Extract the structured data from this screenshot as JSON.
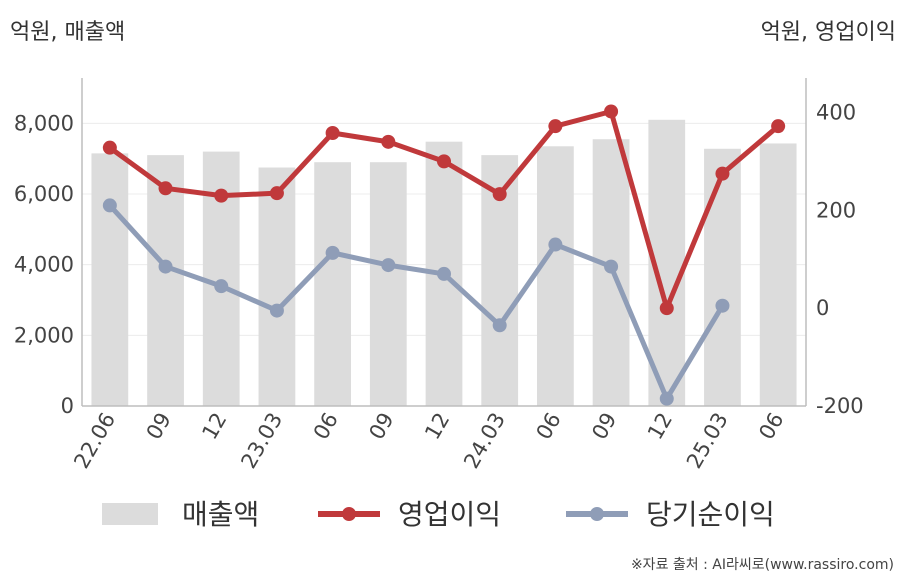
{
  "chart_data": {
    "type": "bar",
    "categories": [
      "22.06",
      "09",
      "12",
      "23.03",
      "06",
      "09",
      "12",
      "24.03",
      "06",
      "09",
      "12",
      "25.03",
      "06"
    ],
    "left_axis_label": "억원, 매출액",
    "right_axis_label": "억원, 영업이익",
    "left_ylim": [
      0,
      9000
    ],
    "left_ticks": [
      0,
      2000,
      4000,
      6000,
      8000
    ],
    "left_tick_labels": [
      "0",
      "2,000",
      "4,000",
      "6,000",
      "8,000"
    ],
    "right_ylim": [
      -200,
      450
    ],
    "right_ticks": [
      -200,
      0,
      200,
      400
    ],
    "right_tick_labels": [
      "-200",
      "0",
      "200",
      "400"
    ],
    "grid": true,
    "legend_position": "bottom",
    "series": [
      {
        "name": "매출액",
        "type": "bar",
        "axis": "left",
        "color": "#dcdcdc",
        "values": [
          7150,
          7100,
          7200,
          6750,
          6900,
          6900,
          7480,
          7100,
          7350,
          7550,
          8100,
          7280,
          7430
        ]
      },
      {
        "name": "영업이익",
        "type": "line",
        "axis": "right",
        "color": "#c0393b",
        "values": [
          328,
          245,
          230,
          235,
          358,
          340,
          300,
          233,
          372,
          402,
          0,
          275,
          372
        ]
      },
      {
        "name": "당기순이익",
        "type": "line",
        "axis": "right",
        "color": "#8f9db7",
        "values": [
          210,
          85,
          45,
          -5,
          113,
          88,
          70,
          -35,
          130,
          85,
          -185,
          5,
          null
        ]
      }
    ]
  },
  "source": "※자료 출처 : AI라씨로(www.rassiro.com)"
}
